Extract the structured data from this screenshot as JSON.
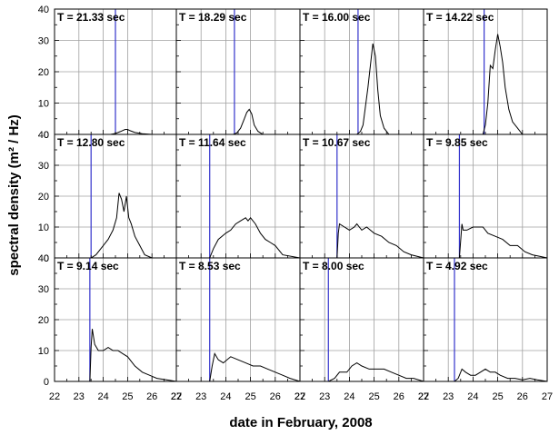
{
  "chart_data": {
    "type": "line",
    "layout": "4x3 small multiples, shared axes",
    "xlabel": "date in February, 2008",
    "ylabel": "spectral density (m² / Hz)",
    "xlim": [
      22,
      27
    ],
    "ylim": [
      0,
      40
    ],
    "x_ticks": [
      "22",
      "23",
      "24",
      "25",
      "26",
      "27"
    ],
    "y_ticks": [
      "0",
      "10",
      "20",
      "30",
      "40"
    ],
    "grid": true,
    "colors": {
      "spectrum": "#000000",
      "marker": "#3333cc",
      "grid": "#a0a0a0"
    },
    "panels": [
      {
        "title": "T = 21.33 sec",
        "marker_x": 24.5,
        "x": [
          22,
          24.3,
          24.5,
          24.7,
          24.9,
          25.0,
          25.1,
          25.3,
          25.6,
          26,
          27
        ],
        "y": [
          0,
          0,
          0.3,
          0.9,
          1.6,
          1.6,
          1.2,
          0.6,
          0.2,
          0,
          0
        ]
      },
      {
        "title": "T = 18.29 sec",
        "marker_x": 24.35,
        "x": [
          22,
          24.3,
          24.45,
          24.6,
          24.75,
          24.85,
          24.95,
          25.05,
          25.15,
          25.3,
          25.5,
          27
        ],
        "y": [
          0,
          0,
          0.5,
          2,
          5,
          7,
          8,
          6.5,
          3,
          1,
          0,
          0
        ]
      },
      {
        "title": "T = 16.00 sec",
        "marker_x": 24.35,
        "x": [
          22,
          24.3,
          24.45,
          24.55,
          24.65,
          24.75,
          24.85,
          24.95,
          25.05,
          25.15,
          25.25,
          25.4,
          25.6,
          27
        ],
        "y": [
          0,
          0,
          1,
          3,
          9,
          15,
          22,
          29,
          25,
          14,
          6,
          2,
          0,
          0
        ]
      },
      {
        "title": "T = 14.22 sec",
        "marker_x": 24.45,
        "x": [
          22,
          24.4,
          24.5,
          24.6,
          24.7,
          24.8,
          24.9,
          25.0,
          25.1,
          25.2,
          25.3,
          25.45,
          25.6,
          25.8,
          26.0,
          27
        ],
        "y": [
          0,
          0,
          3,
          10,
          22,
          21,
          27,
          32,
          28,
          23,
          15,
          8,
          4,
          2,
          0,
          0
        ]
      },
      {
        "title": "T = 12.80 sec",
        "marker_x": 23.5,
        "x": [
          22,
          23.5,
          23.7,
          24.0,
          24.2,
          24.4,
          24.55,
          24.65,
          24.75,
          24.85,
          24.95,
          25.05,
          25.15,
          25.3,
          25.5,
          25.7,
          26.0,
          27
        ],
        "y": [
          0,
          0,
          1,
          4,
          6,
          9,
          13,
          21,
          19,
          15,
          20,
          13,
          11,
          7,
          4,
          1,
          0,
          0
        ]
      },
      {
        "title": "T = 11.64 sec",
        "marker_x": 23.35,
        "x": [
          22,
          23.35,
          23.5,
          23.7,
          24.0,
          24.2,
          24.4,
          24.6,
          24.8,
          24.9,
          25.0,
          25.2,
          25.4,
          25.6,
          25.8,
          26.0,
          26.3,
          27
        ],
        "y": [
          0,
          0,
          3,
          6,
          8,
          9,
          11,
          12,
          13,
          12,
          13,
          11,
          8,
          6,
          5,
          4,
          1,
          0
        ]
      },
      {
        "title": "T = 10.67 sec",
        "marker_x": 23.5,
        "x": [
          22,
          23.5,
          23.55,
          23.6,
          23.8,
          24.0,
          24.2,
          24.3,
          24.5,
          24.7,
          25.0,
          25.3,
          25.6,
          25.9,
          26.2,
          26.5,
          27
        ],
        "y": [
          0,
          0,
          8,
          11,
          10,
          9,
          10,
          11,
          9,
          10,
          8,
          7,
          5,
          4,
          2,
          1,
          0
        ]
      },
      {
        "title": "T = 9.85 sec",
        "marker_x": 23.45,
        "x": [
          22,
          23.45,
          23.55,
          23.6,
          23.75,
          24.0,
          24.2,
          24.4,
          24.6,
          24.9,
          25.2,
          25.5,
          25.8,
          26.1,
          26.4,
          26.7,
          27
        ],
        "y": [
          0,
          0,
          11,
          9,
          9,
          10,
          10,
          10,
          8,
          7,
          6,
          4,
          4,
          2,
          1,
          0.5,
          0
        ]
      },
      {
        "title": "T = 9.14 sec",
        "marker_x": 23.45,
        "x": [
          22,
          23.45,
          23.5,
          23.55,
          23.65,
          23.8,
          24.0,
          24.2,
          24.4,
          24.6,
          24.8,
          25.0,
          25.3,
          25.6,
          25.9,
          26.2,
          26.6,
          27
        ],
        "y": [
          0,
          0,
          11,
          17,
          12,
          10,
          10,
          11,
          10,
          10,
          9,
          8,
          5,
          3,
          2,
          1,
          0.5,
          0
        ]
      },
      {
        "title": "T = 8.53 sec",
        "marker_x": 23.35,
        "x": [
          22,
          23.35,
          23.45,
          23.55,
          23.7,
          23.9,
          24.2,
          24.5,
          24.8,
          25.1,
          25.4,
          25.7,
          26.0,
          26.3,
          26.6,
          27
        ],
        "y": [
          0,
          0,
          5,
          9,
          7,
          6,
          8,
          7,
          6,
          5,
          5,
          4,
          3,
          2,
          1,
          0
        ]
      },
      {
        "title": "T = 8.00 sec",
        "marker_x": 23.15,
        "x": [
          22,
          23.15,
          23.4,
          23.6,
          23.9,
          24.1,
          24.3,
          24.5,
          24.8,
          25.1,
          25.4,
          25.7,
          26.0,
          26.3,
          26.6,
          27
        ],
        "y": [
          0,
          0,
          1,
          3,
          3,
          5,
          6,
          5,
          4,
          4,
          4,
          3,
          2,
          1,
          1,
          0
        ]
      },
      {
        "title": "T = 4.92 sec",
        "marker_x": 23.25,
        "x": [
          22,
          23.25,
          23.4,
          23.55,
          23.7,
          23.9,
          24.1,
          24.3,
          24.5,
          24.7,
          24.9,
          25.1,
          25.4,
          25.7,
          26.0,
          26.3,
          26.6,
          27
        ],
        "y": [
          0,
          0,
          1,
          4,
          3,
          2,
          2,
          3,
          4,
          3,
          3,
          2,
          1,
          1,
          0.5,
          1,
          0.5,
          0
        ]
      }
    ]
  }
}
